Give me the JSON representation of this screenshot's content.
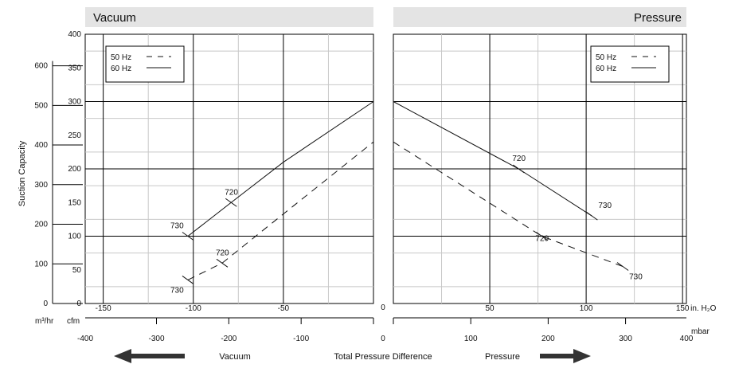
{
  "chart_data": {
    "type": "line",
    "y_title": "Suction Capacity",
    "x_title": "Total Pressure Difference",
    "panels": [
      {
        "id": "vacuum",
        "title": "Vacuum",
        "x_ticks_inh2o": [
          "-150",
          "-100",
          "-50"
        ],
        "x_ticks_mbar": [
          "-400",
          "-300",
          "-200",
          "-100"
        ],
        "xlim_inh2o": [
          -160,
          0
        ],
        "legend": [
          {
            "name": "50 Hz",
            "style": "dashed"
          },
          {
            "name": "60 Hz",
            "style": "solid"
          }
        ],
        "legend_position": "top-left",
        "series": [
          {
            "name": "60 Hz",
            "style": "solid",
            "x": [
              -103,
              -79,
              -50,
              0
            ],
            "y": [
              100,
              150,
              210,
              300
            ]
          },
          {
            "name": "50 Hz",
            "style": "dashed",
            "x": [
              -103,
              -84,
              -50,
              0
            ],
            "y": [
              35,
              60,
              133,
              240
            ]
          }
        ],
        "annotations": [
          {
            "text": "720",
            "x": -79,
            "y": 150
          },
          {
            "text": "730",
            "x": -103,
            "y": 100
          },
          {
            "text": "720",
            "x": -84,
            "y": 60
          },
          {
            "text": "730",
            "x": -103,
            "y": 35
          }
        ]
      },
      {
        "id": "pressure",
        "title": "Pressure",
        "x_ticks_inh2o": [
          "50",
          "100",
          "150"
        ],
        "x_ticks_inh2o_unit": "in. H₂O",
        "x_ticks_mbar": [
          "100",
          "200",
          "300",
          "400"
        ],
        "x_ticks_mbar_unit": "mbar",
        "xlim_inh2o": [
          0,
          152
        ],
        "legend": [
          {
            "name": "50 Hz",
            "style": "dashed"
          },
          {
            "name": "60 Hz",
            "style": "solid"
          }
        ],
        "legend_position": "top-right",
        "series": [
          {
            "name": "60 Hz",
            "style": "solid",
            "x": [
              0,
              65,
              103
            ],
            "y": [
              300,
              200,
              130
            ]
          },
          {
            "name": "50 Hz",
            "style": "dashed",
            "x": [
              0,
              77,
              119
            ],
            "y": [
              240,
              100,
              55
            ]
          }
        ],
        "annotations": [
          {
            "text": "720",
            "x": 65,
            "y": 200
          },
          {
            "text": "730",
            "x": 103,
            "y": 130
          },
          {
            "text": "720",
            "x": 77,
            "y": 100
          },
          {
            "text": "730",
            "x": 119,
            "y": 55
          }
        ]
      }
    ],
    "y_ticks_cfm": [
      "0",
      "50",
      "100",
      "150",
      "200",
      "250",
      "300",
      "350",
      "400"
    ],
    "y_ticks_m3hr": [
      "0",
      "100",
      "200",
      "300",
      "400",
      "500",
      "600"
    ],
    "ylim_cfm": [
      0,
      400
    ],
    "zero_label": "0",
    "y_unit_m3hr": "m³/hr",
    "y_unit_cfm": "cfm",
    "arrows": {
      "left_label": "Vacuum",
      "right_label": "Pressure",
      "color": "#333333"
    }
  }
}
